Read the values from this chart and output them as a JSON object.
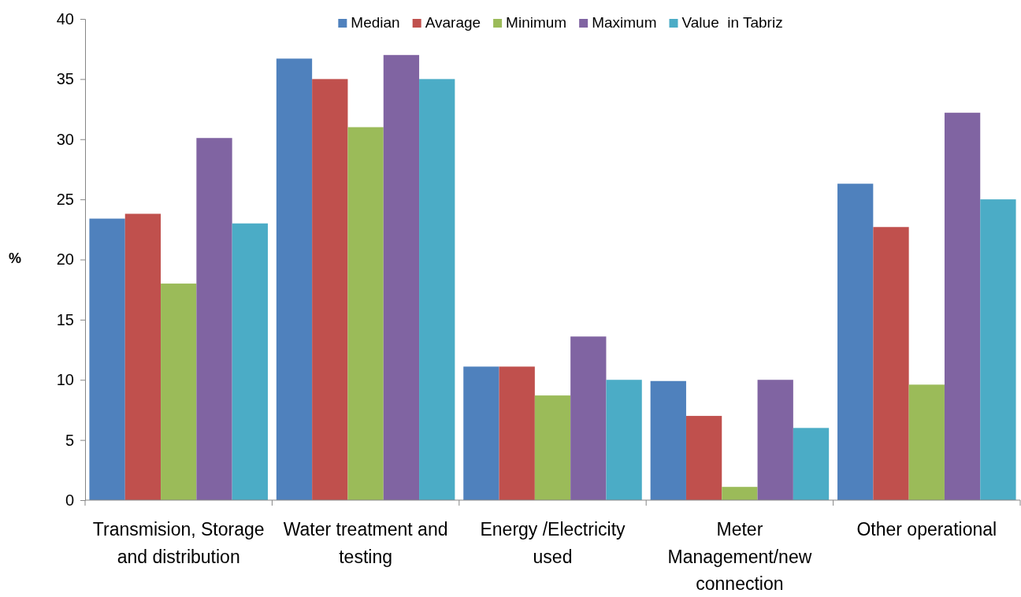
{
  "chart_data": {
    "type": "bar",
    "ylabel": "%",
    "categories": [
      "Transmision, Storage and distribution",
      "Water treatment and testing",
      "Energy /Electricity used",
      "Meter Management/new connection",
      "Other operational"
    ],
    "series": [
      {
        "name": "Median",
        "color": "#4f81bd",
        "values": [
          23.4,
          36.7,
          11.1,
          9.9,
          26.3
        ]
      },
      {
        "name": "Avarage",
        "color": "#c0504d",
        "values": [
          23.8,
          35.0,
          11.1,
          7.0,
          22.7
        ]
      },
      {
        "name": "Minimum",
        "color": "#9bbb59",
        "values": [
          18.0,
          31.0,
          8.7,
          1.1,
          9.6
        ]
      },
      {
        "name": "Maximum",
        "color": "#8064a2",
        "values": [
          30.1,
          37.0,
          13.6,
          10.0,
          32.2
        ]
      },
      {
        "name": "Value  in Tabriz",
        "color": "#4bacc6",
        "values": [
          23.0,
          35.0,
          10.0,
          6.0,
          25.0
        ]
      }
    ],
    "ylim": [
      0,
      40
    ],
    "yticks": [
      0,
      5,
      10,
      15,
      20,
      25,
      30,
      35,
      40
    ],
    "grid": false,
    "legend": "top"
  }
}
